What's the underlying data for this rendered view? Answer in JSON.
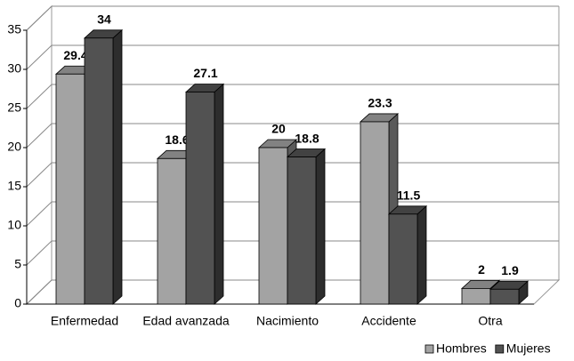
{
  "chart_data": {
    "type": "bar3d",
    "categories": [
      "Enfermedad",
      "Edad avanzada",
      "Nacimiento",
      "Accidente",
      "Otra"
    ],
    "series": [
      {
        "name": "Hombres",
        "color": "#a3a3a3",
        "values": [
          29.4,
          18.6,
          20,
          23.3,
          2
        ]
      },
      {
        "name": "Mujeres",
        "color": "#525252",
        "values": [
          34,
          27.1,
          18.8,
          11.5,
          1.9
        ]
      }
    ],
    "ylim": [
      0,
      35
    ],
    "yticks": [
      0,
      5,
      10,
      15,
      20,
      25,
      30,
      35
    ],
    "grid": true,
    "legend": "bottom-right"
  }
}
